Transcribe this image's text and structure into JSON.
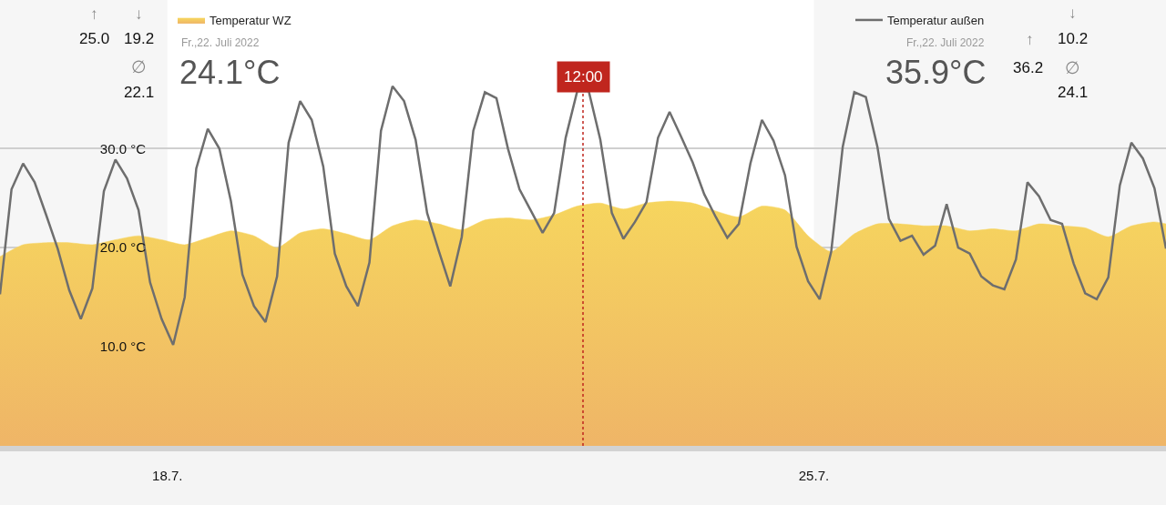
{
  "chart_data": {
    "type": "line",
    "x": [
      "2022-07-16T04:30",
      "2022-07-16T07:30",
      "2022-07-16T10:30",
      "2022-07-16T13:30",
      "2022-07-16T16:30",
      "2022-07-16T19:30",
      "2022-07-16T22:30",
      "2022-07-17T01:30",
      "2022-07-17T04:30",
      "2022-07-17T07:30",
      "2022-07-17T10:30",
      "2022-07-17T13:30",
      "2022-07-17T16:30",
      "2022-07-17T19:30",
      "2022-07-17T22:30",
      "2022-07-18T01:30",
      "2022-07-18T04:30",
      "2022-07-18T07:30",
      "2022-07-18T10:30",
      "2022-07-18T13:30",
      "2022-07-18T16:30",
      "2022-07-18T19:30",
      "2022-07-18T22:30",
      "2022-07-19T01:30",
      "2022-07-19T04:30",
      "2022-07-19T07:30",
      "2022-07-19T10:30",
      "2022-07-19T13:30",
      "2022-07-19T16:30",
      "2022-07-19T19:30",
      "2022-07-19T22:30",
      "2022-07-20T01:30",
      "2022-07-20T04:30",
      "2022-07-20T07:30",
      "2022-07-20T10:30",
      "2022-07-20T13:30",
      "2022-07-20T16:30",
      "2022-07-20T19:30",
      "2022-07-20T22:30",
      "2022-07-21T01:30",
      "2022-07-21T04:30",
      "2022-07-21T07:30",
      "2022-07-21T10:30",
      "2022-07-21T13:30",
      "2022-07-21T16:30",
      "2022-07-21T19:30",
      "2022-07-21T22:30",
      "2022-07-22T01:30",
      "2022-07-22T04:30",
      "2022-07-22T07:30",
      "2022-07-22T10:30",
      "2022-07-22T13:30",
      "2022-07-22T16:30",
      "2022-07-22T19:30",
      "2022-07-22T22:30",
      "2022-07-23T01:30",
      "2022-07-23T04:30",
      "2022-07-23T07:30",
      "2022-07-23T10:30",
      "2022-07-23T13:30",
      "2022-07-23T16:30",
      "2022-07-23T19:30",
      "2022-07-23T22:30",
      "2022-07-24T01:30",
      "2022-07-24T04:30",
      "2022-07-24T07:30",
      "2022-07-24T10:30",
      "2022-07-24T13:30",
      "2022-07-24T16:30",
      "2022-07-24T19:30",
      "2022-07-24T22:30",
      "2022-07-25T01:30",
      "2022-07-25T04:30",
      "2022-07-25T07:30",
      "2022-07-25T10:30",
      "2022-07-25T13:30",
      "2022-07-25T16:30",
      "2022-07-25T19:30",
      "2022-07-25T22:30",
      "2022-07-26T01:30",
      "2022-07-26T04:30",
      "2022-07-26T07:30",
      "2022-07-26T10:30",
      "2022-07-26T13:30",
      "2022-07-26T16:30",
      "2022-07-26T19:30",
      "2022-07-26T22:30",
      "2022-07-27T01:30",
      "2022-07-27T04:30",
      "2022-07-27T07:30",
      "2022-07-27T10:30",
      "2022-07-27T13:30",
      "2022-07-27T16:30",
      "2022-07-27T19:30",
      "2022-07-27T22:30",
      "2022-07-28T01:30",
      "2022-07-28T04:30",
      "2022-07-28T07:30",
      "2022-07-28T10:30",
      "2022-07-28T13:30",
      "2022-07-28T16:30",
      "2022-07-28T19:30"
    ],
    "series": [
      {
        "name": "Temperatur WZ",
        "type": "area",
        "color": "#f6d55e",
        "x": [
          "2022-07-16T04:30",
          "2022-07-16T10:30",
          "2022-07-16T16:30",
          "2022-07-16T22:30",
          "2022-07-17T04:30",
          "2022-07-17T10:30",
          "2022-07-17T16:30",
          "2022-07-17T22:30",
          "2022-07-18T04:30",
          "2022-07-18T10:30",
          "2022-07-18T16:30",
          "2022-07-18T22:30",
          "2022-07-19T04:30",
          "2022-07-19T10:30",
          "2022-07-19T16:30",
          "2022-07-19T22:30",
          "2022-07-20T04:30",
          "2022-07-20T10:30",
          "2022-07-20T16:30",
          "2022-07-20T22:30",
          "2022-07-21T04:30",
          "2022-07-21T10:30",
          "2022-07-21T16:30",
          "2022-07-21T22:30",
          "2022-07-22T04:30",
          "2022-07-22T10:30",
          "2022-07-22T16:30",
          "2022-07-22T22:30",
          "2022-07-23T04:30",
          "2022-07-23T10:30",
          "2022-07-23T16:30",
          "2022-07-23T22:30",
          "2022-07-24T04:30",
          "2022-07-24T10:30",
          "2022-07-24T16:30",
          "2022-07-24T22:30",
          "2022-07-25T04:30",
          "2022-07-25T10:30",
          "2022-07-25T16:30",
          "2022-07-25T22:30",
          "2022-07-26T04:30",
          "2022-07-26T10:30",
          "2022-07-26T16:30",
          "2022-07-26T22:30",
          "2022-07-27T04:30",
          "2022-07-27T10:30",
          "2022-07-27T16:30",
          "2022-07-27T22:30",
          "2022-07-28T04:30",
          "2022-07-28T10:30",
          "2022-07-28T16:30",
          "2022-07-28T19:30"
        ],
        "values": [
          19.1,
          20.3,
          20.5,
          20.5,
          20.3,
          20.8,
          21.2,
          20.8,
          20.3,
          21.0,
          21.7,
          21.2,
          20.0,
          21.5,
          21.9,
          21.4,
          20.8,
          22.2,
          22.8,
          22.4,
          21.8,
          22.8,
          23.0,
          22.8,
          23.3,
          24.2,
          24.5,
          23.9,
          24.5,
          24.7,
          24.5,
          23.7,
          23.1,
          24.2,
          23.8,
          21.2,
          19.6,
          21.4,
          22.4,
          22.4,
          22.2,
          22.2,
          21.7,
          21.9,
          21.7,
          22.4,
          22.2,
          22.0,
          21.1,
          22.2,
          22.6,
          22.4
        ]
      },
      {
        "name": "Temperatur außen",
        "color": "#6e6e6e",
        "values": [
          15.3,
          25.9,
          28.5,
          26.6,
          23.3,
          19.9,
          15.7,
          12.8,
          15.9,
          25.7,
          28.9,
          27.0,
          23.8,
          16.5,
          12.8,
          10.2,
          15.0,
          28.0,
          32.0,
          30.0,
          24.7,
          17.3,
          14.1,
          12.5,
          17.1,
          30.6,
          34.8,
          32.9,
          28.2,
          19.4,
          16.1,
          14.1,
          18.5,
          31.8,
          36.3,
          34.8,
          30.9,
          23.5,
          19.7,
          16.1,
          21.1,
          31.8,
          35.7,
          35.1,
          30.0,
          25.9,
          23.7,
          21.5,
          23.5,
          31.1,
          35.8,
          35.8,
          30.9,
          23.5,
          20.9,
          22.6,
          24.6,
          31.1,
          33.7,
          31.2,
          28.6,
          25.4,
          23.1,
          21.0,
          22.4,
          28.5,
          32.9,
          30.8,
          27.3,
          20.1,
          16.6,
          14.8,
          19.6,
          30.2,
          35.7,
          35.2,
          30.2,
          22.9,
          20.7,
          21.2,
          19.3,
          20.2,
          24.4,
          20.0,
          19.4,
          17.1,
          16.2,
          15.8,
          18.8,
          26.6,
          25.2,
          22.8,
          22.4,
          18.4,
          15.4,
          14.8,
          17.0,
          26.3,
          30.6,
          29.0,
          26.0,
          19.9
        ]
      }
    ],
    "xlim": [
      "2022-07-16T04:30",
      "2022-07-28T19:30"
    ],
    "xticks": [
      {
        "value": "2022-07-18",
        "label": "18.7."
      },
      {
        "value": "2022-07-25",
        "label": "25.7."
      }
    ],
    "ylim": [
      0,
      45
    ],
    "yticks": [
      {
        "value": 10,
        "label": "10.0 °C"
      },
      {
        "value": 20,
        "label": "20.0 °C"
      },
      {
        "value": 30,
        "label": "30.0 °C"
      }
    ],
    "grid": "y",
    "legend": "top",
    "marker": "none",
    "line_style": "solid",
    "ref_lines": [
      {
        "axis": "x",
        "value": "2022-07-22T12:00",
        "label": "12:00",
        "color": "#c0261e",
        "line_style": "dotted"
      }
    ],
    "bands": [
      {
        "axis": "x",
        "from": "2022-07-16T04:30",
        "to": "2022-07-18",
        "color": "#f6f6f6"
      },
      {
        "axis": "x",
        "from": "2022-07-25",
        "to": "2022-07-28T19:30",
        "color": "#f6f6f6"
      }
    ],
    "annotations": [
      "↑",
      "↓",
      "25.0",
      "19.2",
      "∅",
      "22.1",
      "Fr.,22. Juli 2022",
      "24.1°C",
      "Fr.,22. Juli 2022",
      "35.9°C",
      "↓",
      "↑",
      "10.2",
      "36.2",
      "∅",
      "24.1"
    ]
  }
}
